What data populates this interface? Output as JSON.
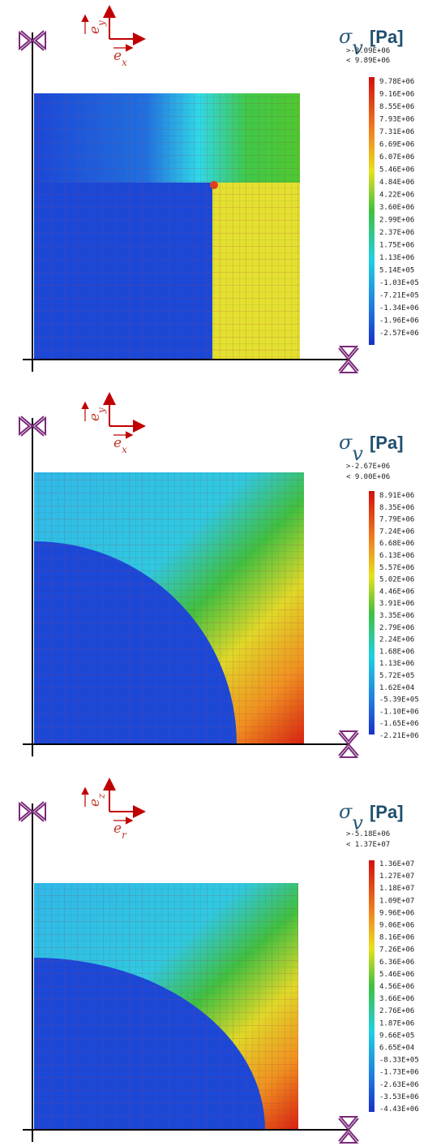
{
  "panels": [
    {
      "axis_vertical": {
        "base": "e",
        "sub": "y"
      },
      "axis_horizontal": {
        "base": "e",
        "sub": "x"
      },
      "legend": {
        "symbol": "σ",
        "sub": "v",
        "unit": "[Pa]",
        "min_label": ">-3.09E+06",
        "max_label": "< 9.89E+06",
        "ticks": [
          "9.78E+06",
          "9.16E+06",
          "8.55E+06",
          "7.93E+06",
          "7.31E+06",
          "6.69E+06",
          "6.07E+06",
          "5.46E+06",
          "4.84E+06",
          "4.22E+06",
          "3.60E+06",
          "2.99E+06",
          "2.37E+06",
          "1.75E+06",
          "1.13E+06",
          "5.14E+05",
          "-1.03E+05",
          "-7.21E+05",
          "-1.34E+06",
          "-1.96E+06",
          "-2.57E+06"
        ]
      }
    },
    {
      "axis_vertical": {
        "base": "e",
        "sub": "y"
      },
      "axis_horizontal": {
        "base": "e",
        "sub": "x"
      },
      "legend": {
        "symbol": "σ",
        "sub": "v",
        "unit": "[Pa]",
        "min_label": ">-2.67E+06",
        "max_label": "< 9.00E+06",
        "ticks": [
          "8.91E+06",
          "8.35E+06",
          "7.79E+06",
          "7.24E+06",
          "6.68E+06",
          "6.13E+06",
          "5.57E+06",
          "5.02E+06",
          "4.46E+06",
          "3.91E+06",
          "3.35E+06",
          "2.79E+06",
          "2.24E+06",
          "1.68E+06",
          "1.13E+06",
          "5.72E+05",
          "1.62E+04",
          "-5.39E+05",
          "-1.10E+06",
          "-1.65E+06",
          "-2.21E+06"
        ]
      }
    },
    {
      "axis_vertical": {
        "base": "e",
        "sub": "z"
      },
      "axis_horizontal": {
        "base": "e",
        "sub": "r"
      },
      "legend": {
        "symbol": "σ",
        "sub": "v",
        "unit": "[Pa]",
        "min_label": ">-5.18E+06",
        "max_label": "< 1.37E+07",
        "ticks": [
          "1.36E+07",
          "1.27E+07",
          "1.18E+07",
          "1.09E+07",
          "9.96E+06",
          "9.06E+06",
          "8.16E+06",
          "7.26E+06",
          "6.36E+06",
          "5.46E+06",
          "4.56E+06",
          "3.66E+06",
          "2.76E+06",
          "1.87E+06",
          "9.66E+05",
          "6.65E+04",
          "-8.33E+05",
          "-1.73E+06",
          "-2.63E+06",
          "-3.53E+06",
          "-4.43E+06"
        ]
      }
    }
  ]
}
